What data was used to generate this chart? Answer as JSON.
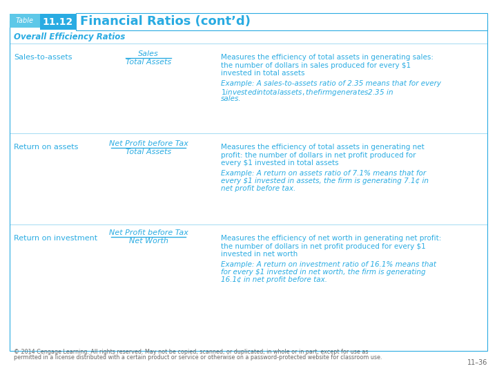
{
  "title_table": "Table",
  "title_number": "11.12",
  "title_main": "Financial Ratios (cont’d)",
  "section_header": "Overall Efficiency Ratios",
  "ratios": [
    {
      "name": "Sales-to-assets",
      "formula_num": "Sales",
      "formula_den": "Total Assets",
      "desc_lines": [
        "Measures the efficiency of total assets in generating sales:",
        "the number of dollars in sales produced for every $1",
        "invested in total assets"
      ],
      "ex_lines": [
        "Example: A sales-to-assets ratio of 2.35 means that for every",
        "$1 invested in total assets, the firm generates $2.35 in",
        "sales."
      ]
    },
    {
      "name": "Return on assets",
      "formula_num": "Net Profit before Tax",
      "formula_den": "Total Assets",
      "desc_lines": [
        "Measures the efficiency of total assets in generating net",
        "profit: the number of dollars in net profit produced for",
        "every $1 invested in total assets"
      ],
      "ex_lines": [
        "Example: A return on assets ratio of 7.1% means that for",
        "every $1 invested in assets, the firm is generating 7.1¢ in",
        "net profit before tax."
      ]
    },
    {
      "name": "Return on investment",
      "formula_num": "Net Profit before Tax",
      "formula_den": "Net Worth",
      "desc_lines": [
        "Measures the efficiency of net worth in generating net profit:",
        "the number of dollars in net profit produced for every $1",
        "invested in net worth"
      ],
      "ex_lines": [
        "Example: A return on investment ratio of 16.1% means that",
        "for every $1 invested in net worth, the firm is generating",
        "16.1¢ in net profit before tax."
      ]
    }
  ],
  "footer1": "© 2014 Cengage Learning. All rights reserved. May not be copied, scanned, or duplicated, in whole or in part, except for use as",
  "footer2": "permitted in a license distributed with a certain product or service or otherwise on a password-protected website for classroom use.",
  "page_num": "11–36",
  "blue": "#29ABE2",
  "blue_dark": "#1A8CB0",
  "blue_tag": "#5EC8E8",
  "gray_text": "#666666"
}
